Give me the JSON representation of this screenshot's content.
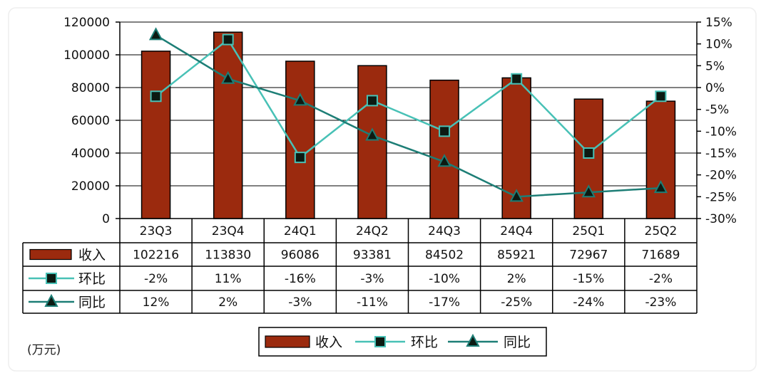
{
  "chart_data": {
    "type": "bar",
    "categories": [
      "23Q3",
      "23Q4",
      "24Q1",
      "24Q2",
      "24Q3",
      "24Q4",
      "25Q1",
      "25Q2"
    ],
    "unit_label": "(万元)",
    "left_axis": {
      "min": 0,
      "max": 120000,
      "step": 20000,
      "ticks": [
        "0",
        "20000",
        "40000",
        "60000",
        "80000",
        "100000",
        "120000"
      ]
    },
    "right_axis": {
      "min": -30,
      "max": 15,
      "step": 5,
      "ticks": [
        "-30%",
        "-25%",
        "-20%",
        "-15%",
        "-10%",
        "-5%",
        "0%",
        "5%",
        "10%",
        "15%"
      ]
    },
    "series": [
      {
        "name": "收入",
        "kind": "bar",
        "axis": "left",
        "color": "#9b2a0e",
        "values": [
          102216,
          113830,
          96086,
          93381,
          84502,
          85921,
          72967,
          71689
        ],
        "labels": [
          "102216",
          "113830",
          "96086",
          "93381",
          "84502",
          "85921",
          "72967",
          "71689"
        ]
      },
      {
        "name": "环比",
        "kind": "line",
        "marker": "square",
        "axis": "right",
        "color": "#48c1b6",
        "values": [
          -2,
          11,
          -16,
          -3,
          -10,
          2,
          -15,
          -2
        ],
        "labels": [
          "-2%",
          "11%",
          "-16%",
          "-3%",
          "-10%",
          "2%",
          "-15%",
          "-2%"
        ]
      },
      {
        "name": "同比",
        "kind": "line",
        "marker": "triangle",
        "axis": "right",
        "color": "#1d7e76",
        "values": [
          12,
          2,
          -3,
          -11,
          -17,
          -25,
          -24,
          -23
        ],
        "labels": [
          "12%",
          "2%",
          "-3%",
          "-11%",
          "-17%",
          "-25%",
          "-24%",
          "-23%"
        ]
      }
    ],
    "legend_position": "bottom-center",
    "grid": true
  }
}
